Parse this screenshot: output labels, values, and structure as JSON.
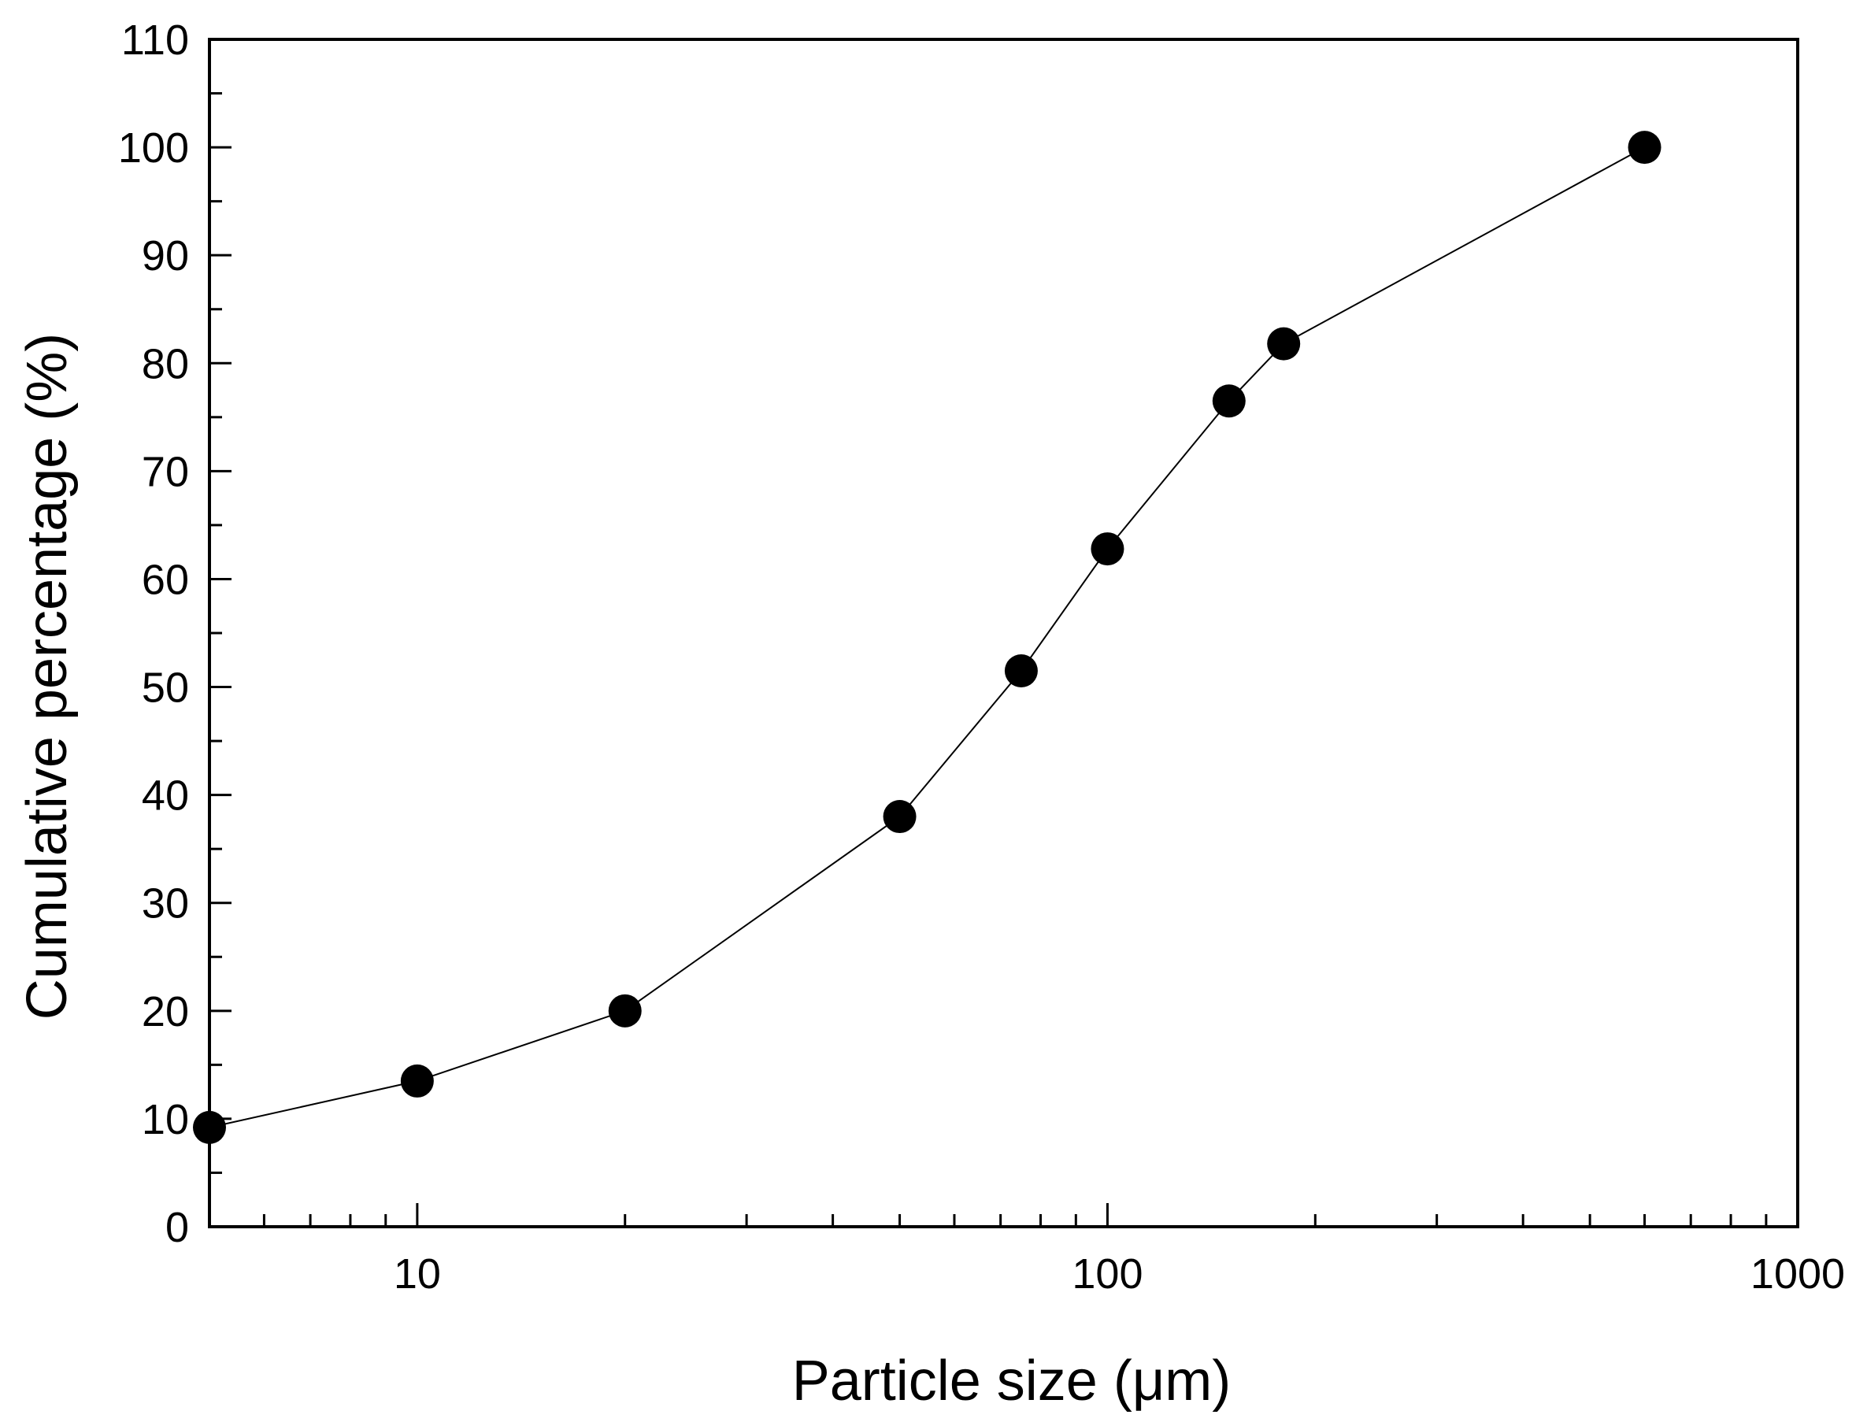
{
  "chart_data": {
    "type": "scatter",
    "title": "",
    "xlabel": "Particle size (μm)",
    "ylabel": "Cumulative percentage (%)",
    "xscale": "log",
    "xlim": [
      5,
      1000
    ],
    "ylim": [
      0,
      110
    ],
    "x_ticks": [
      10,
      100,
      1000
    ],
    "x_tick_labels": [
      "10",
      "100",
      "1000"
    ],
    "y_ticks": [
      0,
      10,
      20,
      30,
      40,
      50,
      60,
      70,
      80,
      90,
      100,
      110
    ],
    "y_tick_labels": [
      "0",
      "10",
      "20",
      "30",
      "40",
      "50",
      "60",
      "70",
      "80",
      "90",
      "100",
      "110"
    ],
    "grid": false,
    "legend": "none",
    "connected": true,
    "series": [
      {
        "marker": "filled-circle",
        "color": "#000000",
        "x": [
          5,
          10,
          20,
          50,
          75,
          100,
          150,
          180,
          600
        ],
        "y": [
          9.2,
          13.5,
          20,
          38,
          51.5,
          62.8,
          76.5,
          81.8,
          100
        ]
      }
    ]
  }
}
